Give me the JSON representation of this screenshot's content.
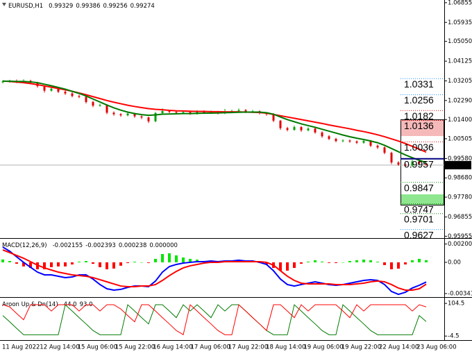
{
  "chart_data": [
    {
      "type": "candlestick",
      "title": "EURUSD,H1",
      "header_values": [
        0.99329,
        0.99386,
        0.99256,
        0.99274
      ],
      "open": [
        1.0314,
        1.0318,
        1.032,
        1.0316,
        1.0321,
        1.0312,
        1.0296,
        1.0275,
        1.0284,
        1.027,
        1.0262,
        1.025,
        1.0246,
        1.0222,
        1.0205,
        1.0208,
        1.0172,
        1.0165,
        1.016,
        1.0168,
        1.0155,
        1.015,
        1.0132,
        1.017,
        1.018,
        1.0176,
        1.0172,
        1.0175,
        1.0168,
        1.0178,
        1.0172,
        1.0176,
        1.017,
        1.0178,
        1.018,
        1.0184,
        1.0176,
        1.0179,
        1.017,
        1.0165,
        1.0135,
        1.01,
        1.0092,
        1.0105,
        1.009,
        1.0098,
        1.008,
        1.0062,
        1.005,
        1.004,
        1.0042,
        1.0038,
        1.0032,
        1.004,
        1.0018,
        1.001,
        0.9985,
        0.994,
        0.993,
        0.9925,
        0.9945,
        0.99329
      ],
      "high": [
        1.0324,
        1.0326,
        1.0327,
        1.0328,
        1.0326,
        1.0316,
        1.03,
        1.029,
        1.0289,
        1.0276,
        1.0268,
        1.0256,
        1.025,
        1.0228,
        1.0214,
        1.0212,
        1.0178,
        1.017,
        1.0174,
        1.0172,
        1.016,
        1.0154,
        1.0176,
        1.0192,
        1.0185,
        1.0182,
        1.0181,
        1.018,
        1.0184,
        1.0183,
        1.0182,
        1.018,
        1.019,
        1.0186,
        1.0192,
        1.0189,
        1.0185,
        1.0183,
        1.0175,
        1.017,
        1.0138,
        1.0106,
        1.0112,
        1.011,
        1.0104,
        1.0102,
        1.0085,
        1.0068,
        1.0055,
        1.0048,
        1.0047,
        1.0043,
        1.0047,
        1.0045,
        1.0024,
        1.0015,
        0.999,
        0.9946,
        0.9936,
        0.9952,
        0.995,
        0.99386
      ],
      "low": [
        1.0309,
        1.0312,
        1.031,
        1.0311,
        1.0305,
        1.0289,
        1.0266,
        1.027,
        1.0264,
        1.0255,
        1.0244,
        1.024,
        1.0215,
        1.0198,
        1.02,
        1.0165,
        1.0158,
        1.0153,
        1.0155,
        1.0148,
        1.0142,
        1.0124,
        1.0128,
        1.0165,
        1.017,
        1.0166,
        1.0167,
        1.0162,
        1.0163,
        1.0166,
        1.0167,
        1.0164,
        1.0165,
        1.0173,
        1.0175,
        1.017,
        1.0171,
        1.0164,
        1.0158,
        1.0128,
        1.0092,
        1.0085,
        1.0088,
        1.0083,
        1.0085,
        1.0074,
        1.0055,
        1.0044,
        1.0034,
        1.0035,
        1.0032,
        1.0026,
        1.0027,
        1.0012,
        1.0003,
        0.9978,
        0.9932,
        0.9924,
        0.9918,
        0.992,
        0.9929,
        0.99256
      ],
      "close": [
        1.0318,
        1.032,
        1.0316,
        1.0321,
        1.0312,
        1.0296,
        1.0275,
        1.0284,
        1.027,
        1.0262,
        1.025,
        1.0246,
        1.0222,
        1.0205,
        1.0208,
        1.0172,
        1.0165,
        1.016,
        1.0168,
        1.0155,
        1.015,
        1.0132,
        1.017,
        1.018,
        1.0176,
        1.0172,
        1.0175,
        1.0168,
        1.0178,
        1.0172,
        1.0176,
        1.017,
        1.0178,
        1.018,
        1.0184,
        1.0176,
        1.0179,
        1.017,
        1.0165,
        1.0135,
        1.01,
        1.0092,
        1.0105,
        1.009,
        1.0098,
        1.008,
        1.0062,
        1.005,
        1.004,
        1.0042,
        1.0038,
        1.0032,
        1.004,
        1.0018,
        1.001,
        0.9985,
        0.994,
        0.993,
        0.9925,
        0.9945,
        0.9935,
        0.99274
      ],
      "up_color": "#00a000",
      "down_color": "#e00000",
      "series": [
        {
          "color": "#ff0000",
          "values": [
            1.032,
            1.0318,
            1.0315,
            1.0312,
            1.0308,
            1.0303,
            1.0297,
            1.0291,
            1.0285,
            1.0279,
            1.0272,
            1.0264,
            1.0256,
            1.0247,
            1.0238,
            1.0229,
            1.0221,
            1.0214,
            1.0207,
            1.0201,
            1.0196,
            1.0191,
            1.0188,
            1.0186,
            1.0183,
            1.0181,
            1.018,
            1.0179,
            1.0178,
            1.0178,
            1.0177,
            1.0177,
            1.0176,
            1.0176,
            1.0176,
            1.0175,
            1.0174,
            1.0173,
            1.017,
            1.0164,
            1.0158,
            1.0152,
            1.0146,
            1.014,
            1.0134,
            1.0128,
            1.0122,
            1.0115,
            1.0109,
            1.0103,
            1.0097,
            1.009,
            1.0084,
            1.0077,
            1.0069,
            1.006,
            1.005,
            1.004,
            1.0028,
            1.0015,
            1.0002,
            0.9988
          ]
        },
        {
          "color": "#007a00",
          "values": [
            1.0319,
            1.0319,
            1.0318,
            1.0318,
            1.0316,
            1.0312,
            1.0305,
            1.0298,
            1.029,
            1.0282,
            1.0272,
            1.0262,
            1.025,
            1.0236,
            1.0222,
            1.0208,
            1.0195,
            1.0184,
            1.0175,
            1.0168,
            1.0163,
            1.016,
            1.0162,
            1.0165,
            1.0166,
            1.0167,
            1.0168,
            1.0168,
            1.0169,
            1.017,
            1.017,
            1.0171,
            1.0172,
            1.0173,
            1.0174,
            1.0175,
            1.0175,
            1.0175,
            1.0172,
            1.0165,
            1.0152,
            1.014,
            1.013,
            1.012,
            1.0112,
            1.0104,
            1.0095,
            1.0086,
            1.0077,
            1.0068,
            1.006,
            1.0053,
            1.0047,
            1.004,
            1.0032,
            1.002,
            1.0005,
            0.999,
            0.9975,
            0.9962,
            0.995,
            0.994
          ]
        }
      ],
      "levels": [
        {
          "value": 1.0331,
          "color": "#1e90ff"
        },
        {
          "value": 1.0256,
          "color": "#1e90ff"
        },
        {
          "value": 1.0182,
          "color": "#dc0000"
        },
        {
          "value": 1.0136,
          "color": "#dc0000"
        },
        {
          "value": 1.0036,
          "color": "#dc0000"
        },
        {
          "value": 0.9957,
          "color": "#000080"
        },
        {
          "value": 0.9847,
          "color": "#007a00"
        },
        {
          "value": 0.9747,
          "color": "#007a00"
        },
        {
          "value": 0.9701,
          "color": "#007a00"
        },
        {
          "value": 0.9627,
          "color": "#1e90ff"
        }
      ],
      "current_price": 0.99274,
      "ylim": [
        0.9587,
        1.0698
      ],
      "yticks": [
        {
          "value": 1.06855,
          "label": "1.06855"
        },
        {
          "value": 1.05935,
          "label": "1.05935"
        },
        {
          "value": 1.0505,
          "label": "1.05050"
        },
        {
          "value": 1.04125,
          "label": "1.04125"
        },
        {
          "value": 1.03205,
          "label": "1.03205"
        },
        {
          "value": 1.0229,
          "label": "1.02290"
        },
        {
          "value": 1.014,
          "label": "1.01400"
        },
        {
          "value": 1.00505,
          "label": "1.00505"
        },
        {
          "value": 0.9958,
          "label": "0.99580"
        },
        {
          "value": 0.9868,
          "label": "0.98680"
        },
        {
          "value": 0.9778,
          "label": "0.97780"
        },
        {
          "value": 0.96855,
          "label": "0.96855"
        },
        {
          "value": 0.95955,
          "label": "0.95955"
        }
      ],
      "xticks": [
        "11 Aug 2022",
        "12 Aug 14:00",
        "15 Aug 06:00",
        "15 Aug 22:00",
        "16 Aug 14:00",
        "17 Aug 06:00",
        "17 Aug 22:00",
        "18 Aug 14:00",
        "19 Aug 06:00",
        "19 Aug 22:00",
        "22 Aug 14:00",
        "23 Aug 06:00"
      ]
    },
    {
      "type": "macd",
      "title": "MACD(12,26,9)",
      "header_values": [
        -0.002155,
        -0.002393,
        0.000238,
        {
          "value": 0,
          "label": "0.000000"
        }
      ],
      "histogram": [
        0.00031,
        0.00015,
        -0.00015,
        -0.00045,
        -0.00061,
        -0.00076,
        -0.00076,
        -0.00053,
        -0.00045,
        -0.00045,
        -0.00023,
        8e-05,
        0.00015,
        -0.00016,
        -0.00053,
        -0.00076,
        -0.00068,
        -0.00037,
        -8e-05,
        7e-05,
        0.0,
        -7e-05,
        0.00038,
        0.00091,
        0.00099,
        0.00076,
        0.00053,
        0.00038,
        0.0003,
        0.00015,
        0.00015,
        7e-05,
        8e-05,
        8e-05,
        0.00016,
        8e-05,
        8e-05,
        -7e-05,
        -0.00023,
        -0.00061,
        -0.00091,
        -0.00091,
        -0.00061,
        -0.00015,
        8e-05,
        0.00023,
        8e-05,
        -7e-05,
        -8e-05,
        0.0,
        0.00015,
        0.00023,
        0.0003,
        0.00023,
        7e-05,
        -0.0003,
        -0.00076,
        -0.00069,
        -0.00023,
        0.00023,
        0.00038,
        0.000238
      ],
      "up_color": "#00e600",
      "down_color": "#ff0000",
      "series": [
        {
          "color": "#0000ff",
          "values": [
            0.00167,
            0.00121,
            0.0006,
            0.0,
            -0.00054,
            -0.00107,
            -0.00137,
            -0.00137,
            -0.00152,
            -0.00167,
            -0.0016,
            -0.00137,
            -0.00137,
            -0.00183,
            -0.00243,
            -0.00289,
            -0.00304,
            -0.00296,
            -0.00274,
            -0.00259,
            -0.00259,
            -0.00266,
            -0.00205,
            -0.00107,
            -0.00046,
            -0.00023,
            -8e-05,
            0.0,
            7e-05,
            7e-05,
            0.00015,
            7e-05,
            0.00015,
            0.00015,
            0.00023,
            0.00015,
            0.00015,
            0.0,
            -0.00023,
            -0.00092,
            -0.00183,
            -0.00243,
            -0.00259,
            -0.00243,
            -0.00228,
            -0.00213,
            -0.00228,
            -0.00243,
            -0.00251,
            -0.00243,
            -0.00228,
            -0.00213,
            -0.00198,
            -0.0019,
            -0.00198,
            -0.00243,
            -0.00319,
            -0.0035,
            -0.00327,
            -0.00281,
            -0.00251,
            -0.002155
          ]
        },
        {
          "color": "#ff0000",
          "values": [
            0.00136,
            0.00106,
            0.00075,
            0.00045,
            7e-05,
            -0.00031,
            -0.00061,
            -0.00084,
            -0.00107,
            -0.00122,
            -0.00137,
            -0.00145,
            -0.00152,
            -0.00167,
            -0.0019,
            -0.00213,
            -0.00236,
            -0.00259,
            -0.00266,
            -0.00266,
            -0.00259,
            -0.00259,
            -0.00243,
            -0.00198,
            -0.00145,
            -0.00099,
            -0.00061,
            -0.00038,
            -0.00023,
            -8e-05,
            0.0,
            0.0,
            7e-05,
            7e-05,
            7e-05,
            7e-05,
            7e-05,
            7e-05,
            0.0,
            -0.00031,
            -0.00092,
            -0.00152,
            -0.00198,
            -0.00228,
            -0.00236,
            -0.00236,
            -0.00236,
            -0.00236,
            -0.00243,
            -0.00243,
            -0.00243,
            -0.00236,
            -0.00228,
            -0.00213,
            -0.00205,
            -0.00213,
            -0.00243,
            -0.00281,
            -0.00304,
            -0.00304,
            -0.00289,
            -0.002393
          ]
        }
      ],
      "ylim": [
        -0.0038,
        0.0025
      ],
      "yticks": [
        0.002004,
        {
          "value": 0,
          "label": "0.00"
        },
        -0.003413
      ]
    },
    {
      "type": "line",
      "title": "Aroon Up & Dn(14)",
      "header_values": [
        {
          "value": 44,
          "label": "44.0"
        },
        {
          "value": 93,
          "label": "93.0"
        }
      ],
      "series": [
        {
          "color": "#007a00",
          "values": [
            64,
            43,
            21,
            0,
            0,
            0,
            0,
            0,
            0,
            100,
            79,
            57,
            36,
            14,
            0,
            0,
            0,
            0,
            100,
            79,
            57,
            36,
            100,
            100,
            79,
            57,
            100,
            79,
            100,
            79,
            57,
            100,
            79,
            100,
            100,
            79,
            57,
            36,
            14,
            0,
            0,
            0,
            100,
            79,
            57,
            36,
            14,
            0,
            0,
            100,
            79,
            57,
            36,
            14,
            0,
            0,
            0,
            0,
            0,
            0,
            64,
            44
          ]
        },
        {
          "color": "#ff0000",
          "values": [
            100,
            93,
            71,
            50,
            100,
            100,
            100,
            79,
            100,
            100,
            100,
            79,
            100,
            100,
            79,
            100,
            100,
            86,
            64,
            43,
            100,
            100,
            79,
            57,
            36,
            14,
            0,
            100,
            79,
            57,
            36,
            14,
            0,
            0,
            100,
            79,
            57,
            36,
            14,
            100,
            100,
            79,
            57,
            100,
            79,
            100,
            100,
            100,
            100,
            79,
            57,
            100,
            79,
            100,
            100,
            100,
            100,
            100,
            100,
            79,
            100,
            93
          ]
        }
      ],
      "ylim": [
        -18,
        121
      ],
      "yticks": [
        104.5,
        -4.5
      ]
    }
  ]
}
